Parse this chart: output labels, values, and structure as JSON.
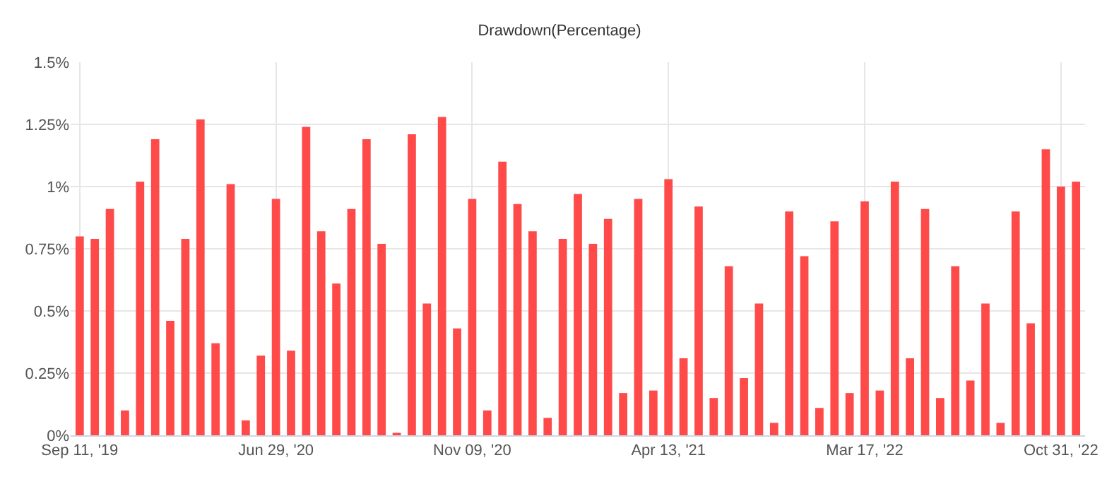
{
  "chart_data": {
    "type": "bar",
    "title": "Drawdown(Percentage)",
    "categories": [
      "Sep 11, '19",
      null,
      null,
      null,
      null,
      null,
      null,
      null,
      null,
      null,
      null,
      null,
      null,
      "Jun 29, '20",
      null,
      null,
      null,
      null,
      null,
      null,
      null,
      null,
      null,
      null,
      null,
      null,
      "Nov 09, '20",
      null,
      null,
      null,
      null,
      null,
      null,
      null,
      null,
      null,
      null,
      null,
      null,
      "Apr 13, '21",
      null,
      null,
      null,
      null,
      null,
      null,
      null,
      null,
      null,
      null,
      null,
      null,
      "Mar 17, '22",
      null,
      null,
      null,
      null,
      null,
      null,
      null,
      null,
      null,
      null,
      null,
      null,
      "Oct 31, '22",
      null
    ],
    "values": [
      0.8,
      0.79,
      0.91,
      0.1,
      1.02,
      1.19,
      0.46,
      0.79,
      1.27,
      0.37,
      1.01,
      0.06,
      0.32,
      0.95,
      0.34,
      1.24,
      0.82,
      0.61,
      0.91,
      1.19,
      0.77,
      0.01,
      1.21,
      0.53,
      1.28,
      0.43,
      0.95,
      0.1,
      1.1,
      0.93,
      0.82,
      0.07,
      0.79,
      0.97,
      0.77,
      0.87,
      0.17,
      0.95,
      0.18,
      1.03,
      0.31,
      0.92,
      0.15,
      0.68,
      0.23,
      0.53,
      0.05,
      0.9,
      0.72,
      0.11,
      0.86,
      0.17,
      0.94,
      0.18,
      1.02,
      0.31,
      0.91,
      0.15,
      0.68,
      0.22,
      0.53,
      0.05,
      0.9,
      0.45,
      1.15,
      1.0,
      1.02
    ],
    "color": "#ff4a4a",
    "ylim": [
      0,
      1.5
    ],
    "yticks": [
      {
        "value": 0,
        "label": "0%"
      },
      {
        "value": 0.25,
        "label": "0.25%"
      },
      {
        "value": 0.5,
        "label": "0.5%"
      },
      {
        "value": 0.75,
        "label": "0.75%"
      },
      {
        "value": 1,
        "label": "1%"
      },
      {
        "value": 1.25,
        "label": "1.25%"
      },
      {
        "value": 1.5,
        "label": "1.5%"
      }
    ],
    "grid": true
  }
}
